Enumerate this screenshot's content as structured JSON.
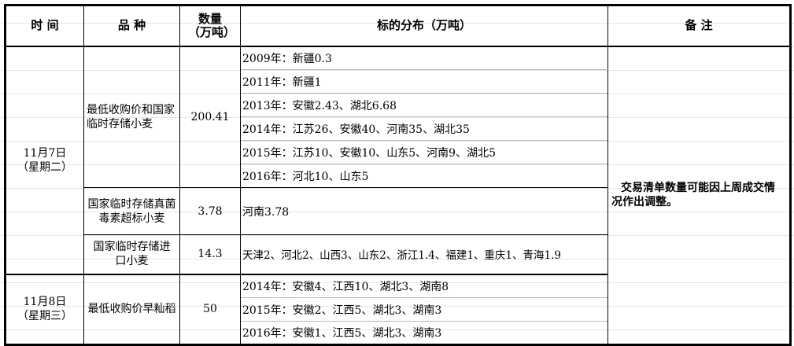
{
  "header": {
    "time": "时 间",
    "variety": "品 种",
    "qty": "数量（万吨）",
    "distribution": "标的分布（万吨）",
    "remarks": "备 注"
  },
  "groups": [
    {
      "date": "11月7日",
      "weekday": "（星期二）",
      "items": [
        {
          "variety": "最低收购价和国家临时存储小麦",
          "qty": "200.41",
          "dist": [
            "2009年：新疆0.3",
            "2011年：新疆1",
            "2013年：安徽2.43、湖北6.68",
            "2014年：江苏26、安徽40、河南35、湖北35",
            "2015年：江苏10、安徽10、山东5、河南9、湖北5",
            "2016年：河北10、山东5"
          ]
        },
        {
          "variety": "国家临时存储真菌毒素超标小麦",
          "qty": "3.78",
          "dist": [
            "河南3.78"
          ]
        },
        {
          "variety": "国家临时存储进口小麦",
          "qty": "14.3",
          "dist": [
            "天津2、河北2、山西3、山东2、浙江1.4、福建1、重庆1、青海1.9"
          ]
        }
      ]
    },
    {
      "date": "11月8日",
      "weekday": "（星期三）",
      "items": [
        {
          "variety": "最低收购价早籼稻",
          "qty": "50",
          "dist": [
            "2014年：安徽4、江西10、湖北3、湖南8",
            "2015年：安徽2、江西5、湖北3、湖南3",
            "2016年：安徽1、江西5、湖北3、湖南3"
          ]
        }
      ]
    }
  ],
  "remarks": "交易清单数量可能因上周成交情况作出调整。"
}
